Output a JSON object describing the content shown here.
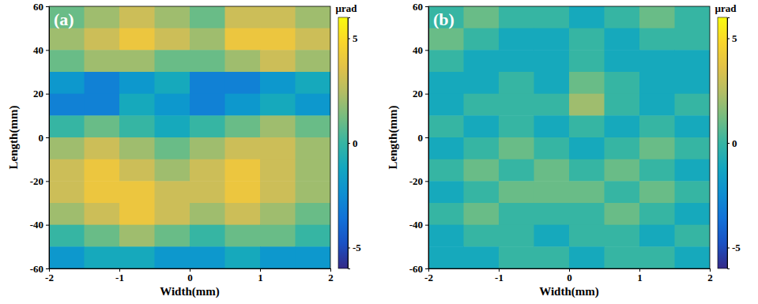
{
  "chart_data": [
    {
      "type": "heatmap",
      "label": "(a)",
      "x_label": "Width(mm)",
      "y_label": "Length(mm)",
      "xlim": [
        -2,
        2
      ],
      "ylim": [
        -60,
        60
      ],
      "xticks": [
        -2,
        -1,
        0,
        1,
        2
      ],
      "yticks": [
        -60,
        -40,
        -20,
        0,
        20,
        40,
        60
      ],
      "x_bins": [
        -2,
        -1.5,
        -1,
        -0.5,
        0,
        0.5,
        1,
        1.5,
        2
      ],
      "y_bins": [
        60,
        50,
        40,
        30,
        20,
        10,
        0,
        -10,
        -20,
        -30,
        -40,
        -50,
        -60
      ],
      "values": [
        [
          1,
          2,
          3,
          2,
          1,
          3,
          3,
          2
        ],
        [
          2,
          3,
          4,
          3,
          2,
          4,
          4,
          3
        ],
        [
          1,
          2,
          2,
          1,
          1,
          2,
          3,
          2
        ],
        [
          -2,
          -3,
          -2,
          -1,
          -3,
          -3,
          -2,
          -1
        ],
        [
          -3,
          -3,
          -1,
          -2,
          -3,
          -2,
          -1,
          -2
        ],
        [
          0,
          1,
          0,
          -1,
          0,
          1,
          2,
          1
        ],
        [
          2,
          3,
          2,
          1,
          2,
          3,
          3,
          2
        ],
        [
          3,
          4,
          3,
          2,
          3,
          4,
          3,
          2
        ],
        [
          3,
          4,
          4,
          3,
          3,
          4,
          3,
          2
        ],
        [
          2,
          3,
          4,
          3,
          2,
          3,
          2,
          1
        ],
        [
          0,
          1,
          2,
          1,
          0,
          1,
          1,
          0
        ],
        [
          -2,
          -1,
          -1,
          -2,
          -2,
          -1,
          -2,
          -2
        ]
      ],
      "colorbar": {
        "title": "µrad",
        "range": [
          -6,
          6
        ],
        "ticks": [
          -5,
          0,
          5
        ]
      }
    },
    {
      "type": "heatmap",
      "label": "(b)",
      "x_label": "Width(mm)",
      "y_label": "Length(mm)",
      "xlim": [
        -2,
        2
      ],
      "ylim": [
        -60,
        60
      ],
      "xticks": [
        -2,
        -1,
        0,
        1,
        2
      ],
      "yticks": [
        -60,
        -40,
        -20,
        0,
        20,
        40,
        60
      ],
      "x_bins": [
        -2,
        -1.5,
        -1,
        -0.5,
        0,
        0.5,
        1,
        1.5,
        2
      ],
      "y_bins": [
        60,
        50,
        40,
        30,
        20,
        10,
        0,
        -10,
        -20,
        -30,
        -40,
        -50,
        -60
      ],
      "values": [
        [
          0,
          1,
          0,
          0,
          -1,
          0,
          1,
          0
        ],
        [
          1,
          0,
          -1,
          -1,
          0,
          -1,
          0,
          0
        ],
        [
          0,
          -1,
          -1,
          -1,
          0,
          -1,
          -1,
          -1
        ],
        [
          -1,
          -1,
          0,
          -1,
          1,
          0,
          -1,
          -1
        ],
        [
          -1,
          0,
          0,
          0,
          2,
          0,
          -1,
          0
        ],
        [
          0,
          -1,
          0,
          -1,
          0,
          -1,
          0,
          -1
        ],
        [
          -1,
          0,
          1,
          0,
          -1,
          0,
          1,
          0
        ],
        [
          0,
          1,
          0,
          1,
          0,
          1,
          0,
          -1
        ],
        [
          -1,
          0,
          1,
          1,
          1,
          0,
          1,
          0
        ],
        [
          0,
          1,
          0,
          0,
          0,
          1,
          0,
          -1
        ],
        [
          -1,
          0,
          0,
          -1,
          0,
          0,
          -1,
          0
        ],
        [
          -1,
          -1,
          0,
          0,
          -1,
          0,
          0,
          -1
        ]
      ],
      "colorbar": {
        "title": "µrad",
        "range": [
          -6,
          6
        ],
        "ticks": [
          -5,
          0,
          5
        ]
      }
    }
  ]
}
